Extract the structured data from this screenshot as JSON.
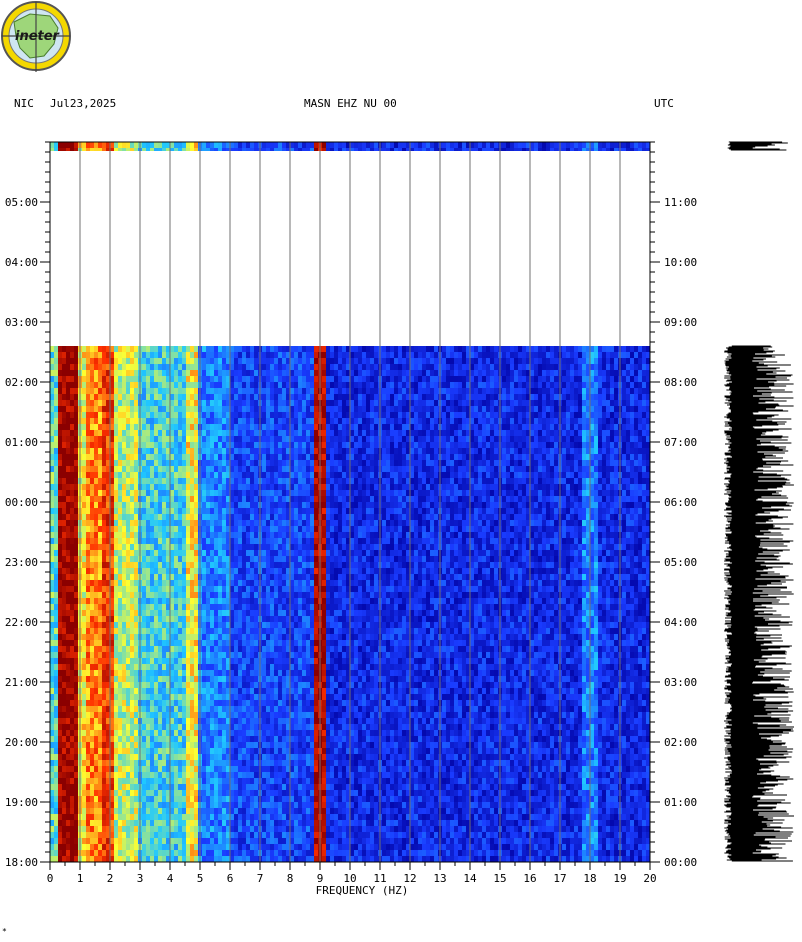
{
  "header": {
    "network": "NIC",
    "date": "Jul23,2025",
    "station": "MASN EHZ NU 00",
    "timezone": "UTC"
  },
  "logo": {
    "text": "ineter"
  },
  "chart_data": {
    "type": "heatmap",
    "title": "MASN EHZ NU 00",
    "xlabel": "FREQUENCY (HZ)",
    "xlim": [
      0,
      20
    ],
    "x_ticks": [
      "0",
      "1",
      "2",
      "3",
      "4",
      "5",
      "6",
      "7",
      "8",
      "9",
      "10",
      "11",
      "12",
      "13",
      "14",
      "15",
      "16",
      "17",
      "18",
      "19",
      "20"
    ],
    "left_time_labels": [
      "05:00",
      "04:00",
      "03:00",
      "02:00",
      "01:00",
      "00:00",
      "23:00",
      "22:00",
      "21:00",
      "20:00",
      "19:00",
      "18:00"
    ],
    "right_time_labels": [
      "11:00",
      "10:00",
      "09:00",
      "08:00",
      "07:00",
      "06:00",
      "05:00",
      "04:00",
      "03:00",
      "02:00",
      "01:00",
      "00:00"
    ],
    "data_gap": {
      "start": "02:36",
      "end": "05:51"
    },
    "dominant_bands_hz": [
      0.7,
      1.5,
      2.0,
      4.8,
      9.0,
      18.0
    ],
    "colormap": [
      "#0000a0",
      "#1a3cff",
      "#20c8ff",
      "#ffff30",
      "#ff3000",
      "#8b0000"
    ]
  }
}
